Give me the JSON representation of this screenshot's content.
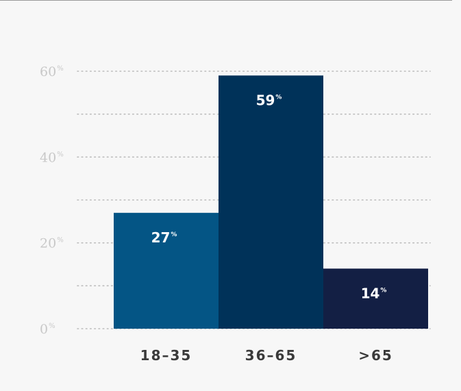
{
  "chart_data": {
    "type": "bar",
    "categories": [
      "18–35",
      "36–65",
      ">65"
    ],
    "values": [
      27,
      59,
      14
    ],
    "value_labels": [
      "27",
      "59",
      "14"
    ],
    "value_unit": "%",
    "colors": [
      "#045585",
      "#003259",
      "#131f44"
    ],
    "ylim": [
      0,
      60
    ],
    "y_ticks": [
      {
        "value": 0,
        "label": "0",
        "unit": "%"
      },
      {
        "value": 20,
        "label": "20",
        "unit": "%"
      },
      {
        "value": 40,
        "label": "40",
        "unit": "%"
      },
      {
        "value": 60,
        "label": "60",
        "unit": "%"
      }
    ],
    "grid_values": [
      0,
      10,
      20,
      30,
      40,
      50,
      60
    ],
    "grid": true,
    "grid_style": "dotted",
    "title": "",
    "xlabel": "",
    "ylabel": ""
  }
}
